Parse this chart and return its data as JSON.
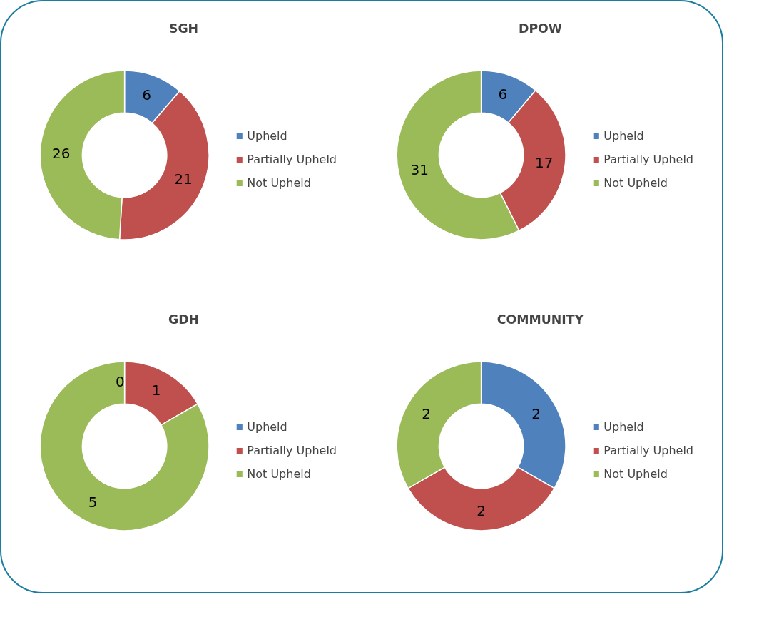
{
  "chart_data": [
    {
      "type": "donut",
      "title": "SGH",
      "categories": [
        "Upheld",
        "Partially Upheld",
        "Not Upheld"
      ],
      "values": [
        6,
        21,
        26
      ],
      "colors": [
        "#4f81bd",
        "#c0504d",
        "#9bbb59"
      ],
      "data_labels": true,
      "legend": "right"
    },
    {
      "type": "donut",
      "title": "DPOW",
      "categories": [
        "Upheld",
        "Partially Upheld",
        "Not Upheld"
      ],
      "values": [
        6,
        17,
        31
      ],
      "colors": [
        "#4f81bd",
        "#c0504d",
        "#9bbb59"
      ],
      "data_labels": true,
      "legend": "right"
    },
    {
      "type": "donut",
      "title": "GDH",
      "categories": [
        "Upheld",
        "Partially Upheld",
        "Not Upheld"
      ],
      "values": [
        0,
        1,
        5
      ],
      "value_labels": [
        "0",
        "1",
        "5"
      ],
      "colors": [
        "#4f81bd",
        "#c0504d",
        "#9bbb59"
      ],
      "legend": "right"
    },
    {
      "type": "donut",
      "title": "COMMUNITY",
      "categories": [
        "Upheld",
        "Partially Upheld",
        "Not Upheld"
      ],
      "values": [
        2,
        2,
        2
      ],
      "colors": [
        "#4f81bd",
        "#c0504d",
        "#9bbb59"
      ],
      "data_labels": true,
      "legend": "right"
    }
  ]
}
